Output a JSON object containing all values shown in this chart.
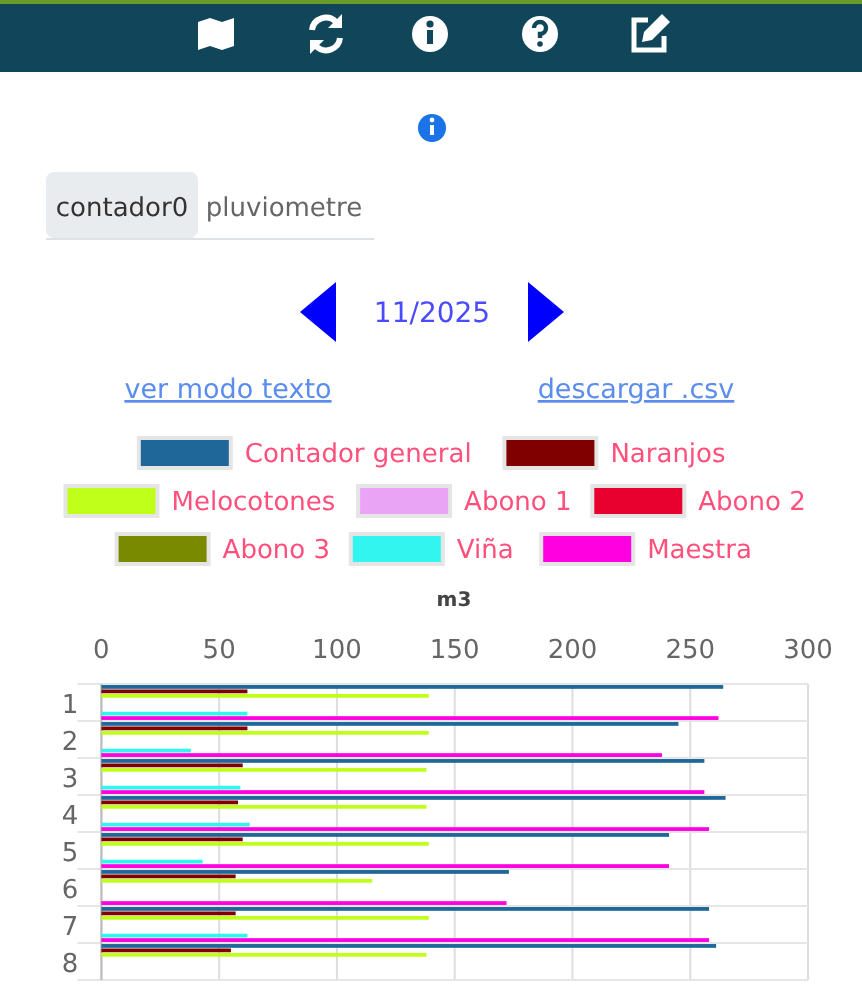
{
  "chart_data": {
    "type": "bar",
    "orientation": "horizontal",
    "title": "11/2025",
    "xlabel": "m3",
    "annotations": [
      "contador0",
      "pluviometre",
      "ver modo texto",
      "descargar .csv"
    ],
    "categories": [
      "1",
      "2",
      "3",
      "4",
      "5",
      "6",
      "7",
      "8"
    ],
    "xlim": [
      0,
      300
    ],
    "xticks": [
      0,
      50,
      100,
      150,
      200,
      250,
      300
    ],
    "grid": true,
    "legend": "top",
    "series": [
      {
        "name": "Contador general",
        "color": "#1f6699",
        "values": [
          264,
          245,
          256,
          265,
          241,
          173,
          258,
          261
        ]
      },
      {
        "name": "Naranjos",
        "color": "#800000",
        "values": [
          62,
          62,
          60,
          58,
          60,
          57,
          57,
          55
        ]
      },
      {
        "name": "Melocotones",
        "color": "#c0ff1a",
        "values": [
          139,
          139,
          138,
          138,
          139,
          115,
          139,
          138
        ]
      },
      {
        "name": "Abono 1",
        "color": "#eaa4f5",
        "values": [
          0,
          0,
          0,
          0,
          0,
          0,
          0,
          null
        ]
      },
      {
        "name": "Abono 2",
        "color": "#e8002e",
        "values": [
          0,
          0,
          0,
          0,
          0,
          0,
          0,
          null
        ]
      },
      {
        "name": "Abono 3",
        "color": "#7a8a00",
        "values": [
          0,
          0,
          0,
          0,
          0,
          0,
          0,
          null
        ]
      },
      {
        "name": "Viña",
        "color": "#33f5f0",
        "values": [
          62,
          38,
          59,
          63,
          43,
          0,
          62,
          null
        ]
      },
      {
        "name": "Maestra",
        "color": "#ff00e0",
        "values": [
          262,
          238,
          256,
          258,
          241,
          172,
          258,
          null
        ]
      }
    ]
  }
}
